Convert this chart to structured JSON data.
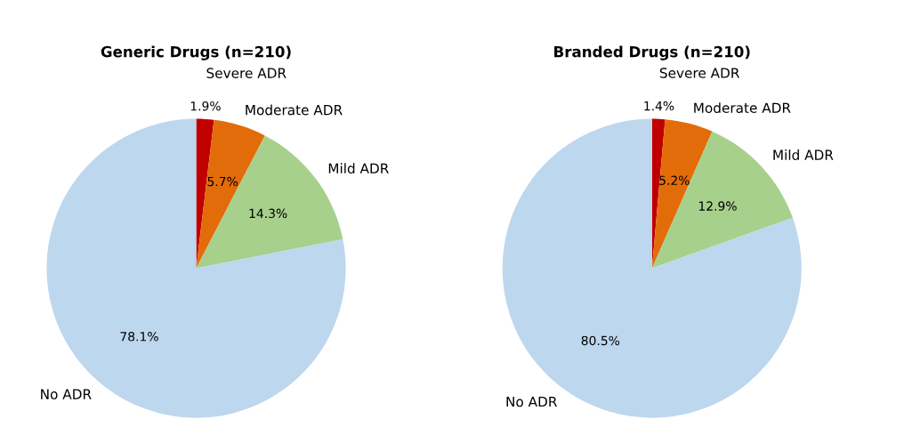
{
  "chart_data": [
    {
      "type": "pie",
      "title": "Generic Drugs (n=210)",
      "categories": [
        "Severe ADR",
        "Moderate ADR",
        "Mild ADR",
        "No ADR"
      ],
      "values": [
        1.9,
        5.7,
        14.3,
        78.1
      ],
      "value_labels": [
        "1.9%",
        "5.7%",
        "14.3%",
        "78.1%"
      ],
      "colors": [
        "#c00000",
        "#e36c0a",
        "#a8d08d",
        "#bdd7ee"
      ]
    },
    {
      "type": "pie",
      "title": "Branded Drugs (n=210)",
      "categories": [
        "Severe ADR",
        "Moderate ADR",
        "Mild ADR",
        "No ADR"
      ],
      "values": [
        1.4,
        5.2,
        12.9,
        80.5
      ],
      "value_labels": [
        "1.4%",
        "5.2%",
        "12.9%",
        "80.5%"
      ],
      "colors": [
        "#c00000",
        "#e36c0a",
        "#a8d08d",
        "#bdd7ee"
      ]
    }
  ]
}
